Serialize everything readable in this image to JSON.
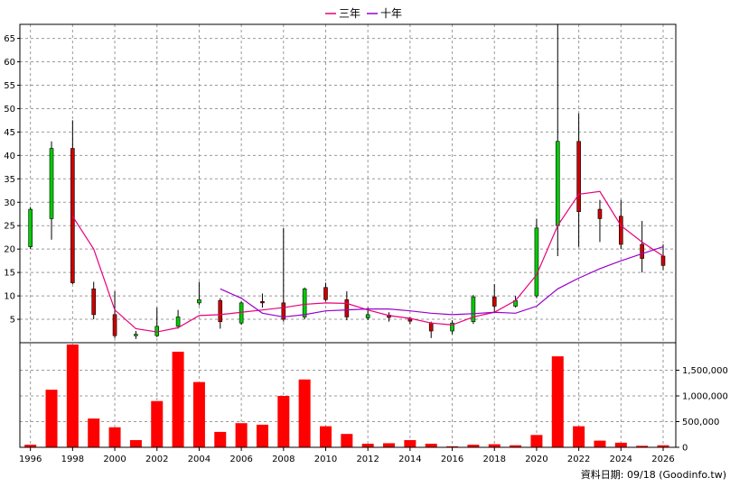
{
  "chart_data": {
    "type": "candlestick",
    "legend": {
      "placement": "top-center",
      "items": [
        {
          "label": "三年",
          "color": "#e8007c"
        },
        {
          "label": "十年",
          "color": "#9a00cc"
        }
      ]
    },
    "x_tick_labels": [
      "1996",
      "1998",
      "2000",
      "2002",
      "2004",
      "2006",
      "2008",
      "2010",
      "2012",
      "2014",
      "2016",
      "2018",
      "2020",
      "2022",
      "2024",
      "2026"
    ],
    "price_axis": {
      "ylim": [
        0,
        68
      ],
      "ticks": [
        5,
        10,
        15,
        20,
        25,
        30,
        35,
        40,
        45,
        50,
        55,
        60,
        65
      ]
    },
    "volume_axis": {
      "ylim": [
        0,
        2000000
      ],
      "ticks": [
        0,
        500000,
        1000000,
        1500000
      ],
      "tick_labels": [
        "0",
        "500,000",
        "1,000,000",
        "1,500,000"
      ]
    },
    "grid": true,
    "colors": {
      "up": "#00cc00",
      "down": "#cc0000",
      "volume": "#ff0000",
      "grid": "#999999"
    },
    "candles": [
      {
        "year": 1996,
        "open": 20.5,
        "close": 28.5,
        "high": 29.0,
        "low": 20.0
      },
      {
        "year": 1997,
        "open": 26.5,
        "close": 41.5,
        "high": 43.0,
        "low": 22.0
      },
      {
        "year": 1998,
        "open": 41.5,
        "close": 12.8,
        "high": 47.5,
        "low": 12.5
      },
      {
        "year": 1999,
        "open": 11.5,
        "close": 6.0,
        "high": 13.0,
        "low": 5.0
      },
      {
        "year": 2000,
        "open": 6.0,
        "close": 1.5,
        "high": 11.0,
        "low": 1.0
      },
      {
        "year": 2001,
        "open": 1.5,
        "close": 1.8,
        "high": 2.5,
        "low": 0.8
      },
      {
        "year": 2002,
        "open": 1.5,
        "close": 3.5,
        "high": 7.5,
        "low": 1.2
      },
      {
        "year": 2003,
        "open": 3.5,
        "close": 5.5,
        "high": 7.0,
        "low": 3.0
      },
      {
        "year": 2004,
        "open": 8.5,
        "close": 9.2,
        "high": 13.0,
        "low": 8.0
      },
      {
        "year": 2005,
        "open": 9.0,
        "close": 4.5,
        "high": 9.5,
        "low": 3.0
      },
      {
        "year": 2006,
        "open": 4.2,
        "close": 8.5,
        "high": 8.8,
        "low": 3.8
      },
      {
        "year": 2007,
        "open": 8.8,
        "close": 8.5,
        "high": 10.5,
        "low": 7.5
      },
      {
        "year": 2008,
        "open": 8.5,
        "close": 5.0,
        "high": 24.5,
        "low": 4.5
      },
      {
        "year": 2009,
        "open": 5.5,
        "close": 11.5,
        "high": 11.8,
        "low": 5.0
      },
      {
        "year": 2010,
        "open": 11.8,
        "close": 9.2,
        "high": 12.8,
        "low": 8.8
      },
      {
        "year": 2011,
        "open": 9.2,
        "close": 5.5,
        "high": 11.0,
        "low": 4.8
      },
      {
        "year": 2012,
        "open": 5.3,
        "close": 6.0,
        "high": 7.5,
        "low": 4.8
      },
      {
        "year": 2013,
        "open": 5.9,
        "close": 5.4,
        "high": 6.5,
        "low": 4.5
      },
      {
        "year": 2014,
        "open": 5.2,
        "close": 4.6,
        "high": 5.5,
        "low": 4.0
      },
      {
        "year": 2015,
        "open": 4.2,
        "close": 2.5,
        "high": 4.5,
        "low": 1.0
      },
      {
        "year": 2016,
        "open": 2.5,
        "close": 4.2,
        "high": 4.8,
        "low": 1.8
      },
      {
        "year": 2017,
        "open": 4.5,
        "close": 9.8,
        "high": 10.2,
        "low": 4.0
      },
      {
        "year": 2018,
        "open": 9.8,
        "close": 7.8,
        "high": 12.5,
        "low": 6.5
      },
      {
        "year": 2019,
        "open": 7.8,
        "close": 9.0,
        "high": 10.0,
        "low": 7.5
      },
      {
        "year": 2020,
        "open": 10.0,
        "close": 24.5,
        "high": 26.5,
        "low": 9.5
      },
      {
        "year": 2021,
        "open": 25.0,
        "close": 43.0,
        "high": 68.0,
        "low": 18.5
      },
      {
        "year": 2022,
        "open": 43.0,
        "close": 28.0,
        "high": 49.0,
        "low": 20.5
      },
      {
        "year": 2023,
        "open": 28.5,
        "close": 26.5,
        "high": 30.5,
        "low": 21.5
      },
      {
        "year": 2024,
        "open": 27.0,
        "close": 21.0,
        "high": 30.5,
        "low": 20.0
      },
      {
        "year": 2025,
        "open": 21.0,
        "close": 18.0,
        "high": 26.0,
        "low": 15.0
      },
      {
        "year": 2026,
        "open": 18.5,
        "close": 16.5,
        "high": 21.0,
        "low": 15.5
      }
    ],
    "ma_series": [
      {
        "name": "三年",
        "color": "#e8007c",
        "points": [
          [
            1998,
            27.0
          ],
          [
            1999,
            20.0
          ],
          [
            2000,
            7.0
          ],
          [
            2001,
            3.0
          ],
          [
            2002,
            2.3
          ],
          [
            2003,
            3.2
          ],
          [
            2004,
            5.8
          ],
          [
            2005,
            6.0
          ],
          [
            2006,
            6.5
          ],
          [
            2007,
            7.0
          ],
          [
            2008,
            7.5
          ],
          [
            2009,
            8.2
          ],
          [
            2010,
            8.5
          ],
          [
            2011,
            8.4
          ],
          [
            2012,
            7.0
          ],
          [
            2013,
            5.8
          ],
          [
            2014,
            5.2
          ],
          [
            2015,
            4.2
          ],
          [
            2016,
            3.8
          ],
          [
            2017,
            5.5
          ],
          [
            2018,
            6.5
          ],
          [
            2019,
            9.0
          ],
          [
            2020,
            14.5
          ],
          [
            2021,
            25.0
          ],
          [
            2022,
            31.7
          ],
          [
            2023,
            32.3
          ],
          [
            2024,
            25.0
          ],
          [
            2025,
            21.5
          ],
          [
            2026,
            18.5
          ]
        ]
      },
      {
        "name": "十年",
        "color": "#9a00cc",
        "points": [
          [
            2005,
            11.5
          ],
          [
            2006,
            9.5
          ],
          [
            2007,
            6.3
          ],
          [
            2008,
            5.5
          ],
          [
            2009,
            6.0
          ],
          [
            2010,
            6.8
          ],
          [
            2011,
            7.0
          ],
          [
            2012,
            7.2
          ],
          [
            2013,
            7.2
          ],
          [
            2014,
            6.8
          ],
          [
            2015,
            6.3
          ],
          [
            2016,
            6.0
          ],
          [
            2017,
            6.2
          ],
          [
            2018,
            6.5
          ],
          [
            2019,
            6.3
          ],
          [
            2020,
            7.8
          ],
          [
            2021,
            11.5
          ],
          [
            2022,
            13.8
          ],
          [
            2023,
            15.8
          ],
          [
            2024,
            17.5
          ],
          [
            2025,
            19.0
          ],
          [
            2026,
            20.5
          ]
        ]
      }
    ],
    "volume": [
      [
        1996,
        50000
      ],
      [
        1997,
        1120000
      ],
      [
        1998,
        2000000
      ],
      [
        1999,
        560000
      ],
      [
        2000,
        390000
      ],
      [
        2001,
        140000
      ],
      [
        2002,
        900000
      ],
      [
        2003,
        1860000
      ],
      [
        2004,
        1270000
      ],
      [
        2005,
        300000
      ],
      [
        2006,
        470000
      ],
      [
        2007,
        440000
      ],
      [
        2008,
        1000000
      ],
      [
        2009,
        1320000
      ],
      [
        2010,
        410000
      ],
      [
        2011,
        260000
      ],
      [
        2012,
        70000
      ],
      [
        2013,
        80000
      ],
      [
        2014,
        140000
      ],
      [
        2015,
        70000
      ],
      [
        2016,
        20000
      ],
      [
        2017,
        50000
      ],
      [
        2018,
        60000
      ],
      [
        2019,
        40000
      ],
      [
        2020,
        240000
      ],
      [
        2021,
        1770000
      ],
      [
        2022,
        410000
      ],
      [
        2023,
        130000
      ],
      [
        2024,
        90000
      ],
      [
        2025,
        30000
      ],
      [
        2026,
        40000
      ]
    ]
  },
  "footer": {
    "source_text": "資料日期: 09/18  (Goodinfo.tw)"
  }
}
